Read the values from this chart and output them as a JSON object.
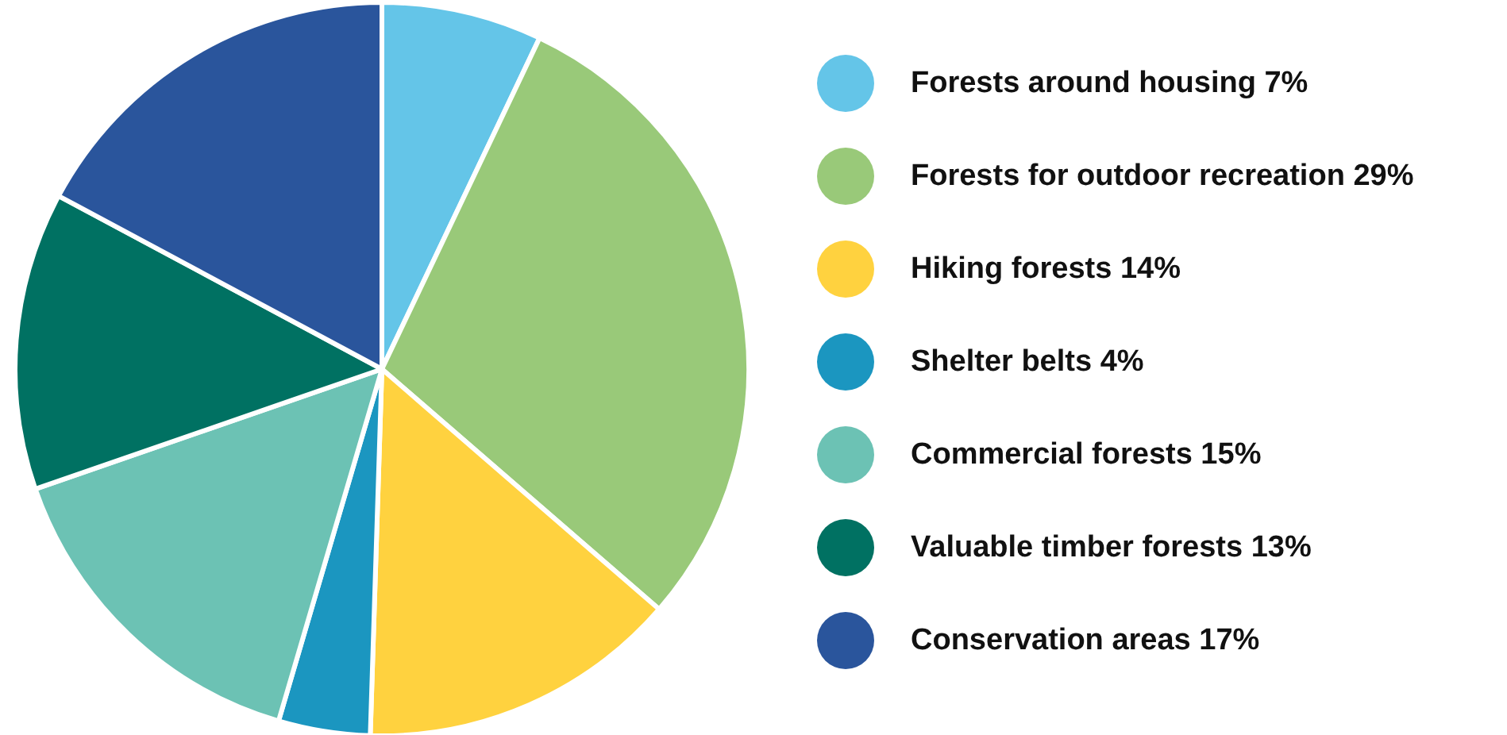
{
  "chart_data": {
    "type": "pie",
    "categories": [
      "Forests around housing 7%",
      "Forests for outdoor recreation 29%",
      "Hiking forests 14%",
      "Shelter belts 4%",
      "Commercial forests 15%",
      "Valuable timber forests 13%",
      "Conservation areas 17%"
    ],
    "values": [
      7,
      29,
      14,
      4,
      15,
      13,
      17
    ],
    "colors": [
      "#64c5e8",
      "#99c979",
      "#ffd23f",
      "#1b96c0",
      "#6cc2b4",
      "#007162",
      "#2a559c"
    ],
    "legend": "right"
  }
}
